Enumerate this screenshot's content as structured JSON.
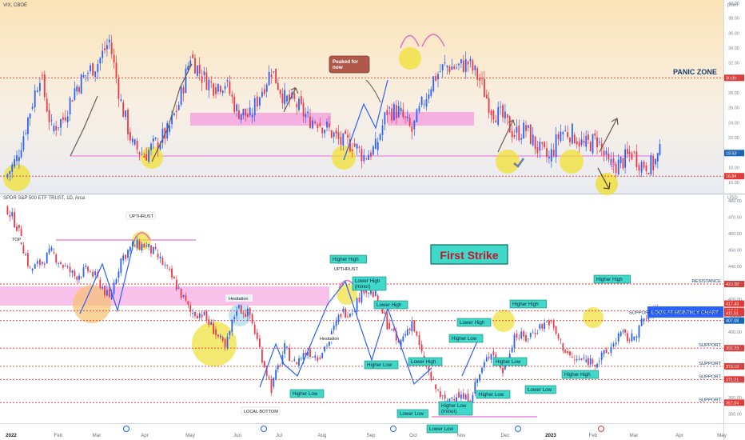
{
  "chart_data": [
    {
      "type": "candlestick",
      "symbol_label": "VIX, CBOE",
      "y_unit": "point",
      "ylim": [
        14.5,
        40
      ],
      "y_ticks": [
        "16.00",
        "18.00",
        "20.00",
        "22.00",
        "24.00",
        "26.00",
        "28.00",
        "30.00",
        "32.00",
        "34.00",
        "36.00",
        "38.00",
        "40.00"
      ],
      "y_tick_values": [
        16,
        18,
        20,
        22,
        24,
        26,
        28,
        30,
        32,
        34,
        36,
        38,
        40
      ],
      "levels": [
        {
          "name": "panic-level",
          "value": 30.0,
          "label": "30.00",
          "color": "#e53935"
        },
        {
          "name": "support-pink",
          "value": 20.0,
          "label": "",
          "color": "#e88ad6"
        },
        {
          "name": "last-price",
          "value": 19.93,
          "label": "19.93",
          "color": "#1565c0"
        },
        {
          "name": "low-level",
          "value": 16.84,
          "label": "16.84",
          "color": "#e53935"
        }
      ],
      "zone_label": "PANIC ZONE",
      "callout": "Peaked for now",
      "question_mark": "?",
      "series": [
        {
          "x": "2022-01-03",
          "close": 16.6
        },
        {
          "x": "2022-01-10",
          "close": 19.2
        },
        {
          "x": "2022-01-18",
          "close": 25.6
        },
        {
          "x": "2022-01-24",
          "close": 30.5
        },
        {
          "x": "2022-01-31",
          "close": 23.2
        },
        {
          "x": "2022-02-07",
          "close": 24.5
        },
        {
          "x": "2022-02-14",
          "close": 28.5
        },
        {
          "x": "2022-02-22",
          "close": 30.8
        },
        {
          "x": "2022-02-28",
          "close": 32.0
        },
        {
          "x": "2022-03-07",
          "close": 35.0
        },
        {
          "x": "2022-03-14",
          "close": 26.7
        },
        {
          "x": "2022-03-21",
          "close": 21.0
        },
        {
          "x": "2022-03-28",
          "close": 19.6
        },
        {
          "x": "2022-04-04",
          "close": 21.2
        },
        {
          "x": "2022-04-11",
          "close": 22.7
        },
        {
          "x": "2022-04-18",
          "close": 26.5
        },
        {
          "x": "2022-04-25",
          "close": 33.0
        },
        {
          "x": "2022-05-02",
          "close": 30.2
        },
        {
          "x": "2022-05-09",
          "close": 28.9
        },
        {
          "x": "2022-05-16",
          "close": 29.4
        },
        {
          "x": "2022-05-23",
          "close": 25.7
        },
        {
          "x": "2022-05-31",
          "close": 24.8
        },
        {
          "x": "2022-06-06",
          "close": 27.8
        },
        {
          "x": "2022-06-13",
          "close": 31.1
        },
        {
          "x": "2022-06-21",
          "close": 27.2
        },
        {
          "x": "2022-06-27",
          "close": 26.7
        },
        {
          "x": "2022-07-05",
          "close": 24.6
        },
        {
          "x": "2022-07-11",
          "close": 24.2
        },
        {
          "x": "2022-07-18",
          "close": 23.0
        },
        {
          "x": "2022-07-25",
          "close": 21.3
        },
        {
          "x": "2022-08-01",
          "close": 21.2
        },
        {
          "x": "2022-08-08",
          "close": 19.5
        },
        {
          "x": "2022-08-15",
          "close": 20.6
        },
        {
          "x": "2022-08-22",
          "close": 25.6
        },
        {
          "x": "2022-08-29",
          "close": 25.5
        },
        {
          "x": "2022-09-06",
          "close": 22.8
        },
        {
          "x": "2022-09-12",
          "close": 26.3
        },
        {
          "x": "2022-09-19",
          "close": 29.9
        },
        {
          "x": "2022-09-26",
          "close": 31.6
        },
        {
          "x": "2022-10-03",
          "close": 31.4
        },
        {
          "x": "2022-10-10",
          "close": 32.0
        },
        {
          "x": "2022-10-17",
          "close": 29.7
        },
        {
          "x": "2022-10-24",
          "close": 25.8
        },
        {
          "x": "2022-10-31",
          "close": 24.6
        },
        {
          "x": "2022-11-07",
          "close": 22.5
        },
        {
          "x": "2022-11-14",
          "close": 23.1
        },
        {
          "x": "2022-11-21",
          "close": 20.5
        },
        {
          "x": "2022-11-28",
          "close": 19.1
        },
        {
          "x": "2022-12-05",
          "close": 22.8
        },
        {
          "x": "2022-12-12",
          "close": 22.6
        },
        {
          "x": "2022-12-19",
          "close": 20.9
        },
        {
          "x": "2022-12-27",
          "close": 21.7
        },
        {
          "x": "2023-01-03",
          "close": 18.3
        },
        {
          "x": "2023-01-09",
          "close": 18.4
        },
        {
          "x": "2023-01-17",
          "close": 19.9
        },
        {
          "x": "2023-01-23",
          "close": 18.5
        },
        {
          "x": "2023-01-30",
          "close": 18.3
        },
        {
          "x": "2023-02-03",
          "close": 19.9
        }
      ]
    },
    {
      "type": "candlestick",
      "symbol_label": "SPDR S&P 500 ETF TRUST, 1D, Arca",
      "y_unit": "USD",
      "ylim": [
        345,
        483
      ],
      "y_ticks": [
        "350.00",
        "360.00",
        "370.00",
        "380.00",
        "390.00",
        "400.00",
        "410.00",
        "420.00",
        "430.00",
        "440.00",
        "450.00",
        "460.00",
        "470.00",
        "480.00"
      ],
      "y_tick_values": [
        350,
        360,
        370,
        380,
        390,
        400,
        410,
        420,
        430,
        440,
        450,
        460,
        470,
        480
      ],
      "levels": [
        {
          "name": "resistance",
          "value": 429.38,
          "label": "429.38",
          "color": "#e53935"
        },
        {
          "name": "support-now-resistance",
          "value": 412.91,
          "label": "412.91",
          "color": "#e53935"
        },
        {
          "name": "support-1",
          "value": 390.23,
          "label": "390.23",
          "color": "#e53935"
        },
        {
          "name": "support-2",
          "value": 379.19,
          "label": "379.19",
          "color": "#e53935"
        },
        {
          "name": "support-3",
          "value": 371.21,
          "label": "371.21",
          "color": "#e53935"
        },
        {
          "name": "support-4",
          "value": 357.04,
          "label": "357.04",
          "color": "#e53935"
        }
      ],
      "price_tags": [
        {
          "value": 417.43,
          "label": "417.43",
          "color": "#e53935"
        },
        {
          "value": 411.51,
          "label": "411.51",
          "color": "#e53935"
        },
        {
          "value": 407.08,
          "label": "407.08",
          "color": "#1565c0"
        }
      ],
      "level_labels": [
        "RESISTANCE",
        "SUPPORT, NOW ACTING AS RESISTANCE",
        "SUPPORT",
        "SUPPORT",
        "SUPPORT",
        "SUPPORT"
      ],
      "title_box": "First Strike",
      "monthly_note": "LOOK AT MONTHLY CHART",
      "annotations": [
        "TOP",
        "UPTHRUST",
        "Hesitation",
        "Hesitation",
        "LOCAL BOTTOM",
        "UPTHRUST"
      ],
      "swing_labels": [
        "Higher High",
        "Lower High (minor)",
        "Lower High",
        "Higher Low",
        "Lower High",
        "Higher Low",
        "Lower Low",
        "Higher Low (minor)",
        "Lower Low",
        "Higher High",
        "Higher High",
        "Higher Low",
        "Higher Low",
        "Lower Low",
        "Lower High",
        "Higher Low",
        "Higher High"
      ],
      "series": [
        {
          "x": "2022-01-03",
          "close": 477.5
        },
        {
          "x": "2022-01-10",
          "close": 464.7
        },
        {
          "x": "2022-01-18",
          "close": 437.9
        },
        {
          "x": "2022-01-24",
          "close": 441.9
        },
        {
          "x": "2022-01-31",
          "close": 448.7
        },
        {
          "x": "2022-02-07",
          "close": 440.5
        },
        {
          "x": "2022-02-14",
          "close": 434.2
        },
        {
          "x": "2022-02-22",
          "close": 437.8
        },
        {
          "x": "2022-02-28",
          "close": 432.2
        },
        {
          "x": "2022-03-07",
          "close": 420.1
        },
        {
          "x": "2022-03-14",
          "close": 444.5
        },
        {
          "x": "2022-03-21",
          "close": 452.7
        },
        {
          "x": "2022-03-28",
          "close": 452.9
        },
        {
          "x": "2022-04-04",
          "close": 447.6
        },
        {
          "x": "2022-04-11",
          "close": 437.8
        },
        {
          "x": "2022-04-18",
          "close": 426.0
        },
        {
          "x": "2022-04-25",
          "close": 412.0
        },
        {
          "x": "2022-05-02",
          "close": 411.3
        },
        {
          "x": "2022-05-09",
          "close": 401.7
        },
        {
          "x": "2022-05-16",
          "close": 389.6
        },
        {
          "x": "2022-05-23",
          "close": 415.3
        },
        {
          "x": "2022-05-31",
          "close": 410.5
        },
        {
          "x": "2022-06-06",
          "close": 389.8
        },
        {
          "x": "2022-06-13",
          "close": 365.9
        },
        {
          "x": "2022-06-21",
          "close": 390.1
        },
        {
          "x": "2022-06-27",
          "close": 381.2
        },
        {
          "x": "2022-07-05",
          "close": 388.7
        },
        {
          "x": "2022-07-11",
          "close": 385.1
        },
        {
          "x": "2022-07-18",
          "close": 395.1
        },
        {
          "x": "2022-07-25",
          "close": 411.9
        },
        {
          "x": "2022-08-01",
          "close": 413.5
        },
        {
          "x": "2022-08-08",
          "close": 427.1
        },
        {
          "x": "2022-08-15",
          "close": 422.1
        },
        {
          "x": "2022-08-22",
          "close": 405.3
        },
        {
          "x": "2022-08-29",
          "close": 392.2
        },
        {
          "x": "2022-09-06",
          "close": 406.6
        },
        {
          "x": "2022-09-12",
          "close": 385.6
        },
        {
          "x": "2022-09-19",
          "close": 367.9
        },
        {
          "x": "2022-09-26",
          "close": 357.2
        },
        {
          "x": "2022-10-03",
          "close": 362.8
        },
        {
          "x": "2022-10-10",
          "close": 357.7
        },
        {
          "x": "2022-10-17",
          "close": 374.3
        },
        {
          "x": "2022-10-24",
          "close": 389.0
        },
        {
          "x": "2022-10-31",
          "close": 376.4
        },
        {
          "x": "2022-11-07",
          "close": 398.5
        },
        {
          "x": "2022-11-14",
          "close": 396.0
        },
        {
          "x": "2022-11-21",
          "close": 402.3
        },
        {
          "x": "2022-11-28",
          "close": 406.9
        },
        {
          "x": "2022-12-05",
          "close": 393.3
        },
        {
          "x": "2022-12-12",
          "close": 383.3
        },
        {
          "x": "2022-12-19",
          "close": 382.9
        },
        {
          "x": "2022-12-27",
          "close": 382.4
        },
        {
          "x": "2023-01-03",
          "close": 388.1
        },
        {
          "x": "2023-01-09",
          "close": 398.5
        },
        {
          "x": "2023-01-17",
          "close": 395.9
        },
        {
          "x": "2023-01-23",
          "close": 405.7
        },
        {
          "x": "2023-01-30",
          "close": 412.4
        },
        {
          "x": "2023-02-03",
          "close": 412.4
        }
      ]
    }
  ],
  "x_axis": {
    "tick_labels": [
      "2022",
      "Feb",
      "Mar",
      "Apr",
      "May",
      "Jun",
      "Jul",
      "Aug",
      "Sep",
      "Oct",
      "Nov",
      "Dec",
      "2023",
      "Feb",
      "Mar",
      "Apr",
      "May"
    ]
  },
  "colors": {
    "up": "#2962ff",
    "down": "#f23645",
    "pink_zone": "#f3a6df",
    "background": "#ffffff"
  }
}
